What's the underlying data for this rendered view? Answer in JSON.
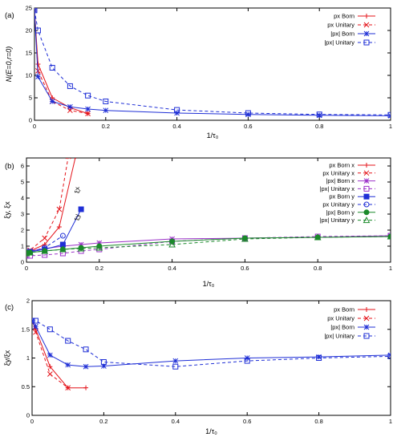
{
  "chart_data": [
    {
      "type": "line",
      "panel_label": "(a)",
      "xlabel": "1/τ₀",
      "ylabel": "N(E=0,r=0)",
      "xlim": [
        0,
        1
      ],
      "ylim": [
        0,
        25
      ],
      "xticks": [
        "0",
        "0.2",
        "0.4",
        "0.6",
        "0.8",
        "1"
      ],
      "xtick_values": [
        0,
        0.2,
        0.4,
        0.6,
        0.8,
        1
      ],
      "yticks": [
        "0",
        "5",
        "10",
        "15",
        "20",
        "25"
      ],
      "ytick_values": [
        0,
        5,
        10,
        15,
        20,
        25
      ],
      "legend_position": "top-right",
      "grid": false,
      "series": [
        {
          "name": "px Born",
          "color": "#e4131a",
          "dash": "solid",
          "marker": "plus",
          "x": [
            0,
            0.01,
            0.05,
            0.1,
            0.15
          ],
          "y": [
            24.5,
            12.5,
            5.0,
            2.8,
            1.5
          ]
        },
        {
          "name": "px Unitary",
          "color": "#e4131a",
          "dash": "dashed",
          "marker": "cross",
          "x": [
            0,
            0.01,
            0.05,
            0.1,
            0.15
          ],
          "y": [
            24.5,
            11.0,
            4.2,
            2.2,
            1.5
          ]
        },
        {
          "name": "|px| Born",
          "color": "#1f2fd6",
          "dash": "solid",
          "marker": "star",
          "x": [
            0,
            0.01,
            0.05,
            0.1,
            0.15,
            0.2,
            0.4,
            0.6,
            0.8,
            1.0
          ],
          "y": [
            24.5,
            9.7,
            4.2,
            3.0,
            2.5,
            2.2,
            1.6,
            1.3,
            1.1,
            1.0
          ]
        },
        {
          "name": "|px| Unitary",
          "color": "#1f2fd6",
          "dash": "dashed",
          "marker": "square",
          "x": [
            0,
            0.01,
            0.05,
            0.1,
            0.15,
            0.2,
            0.4,
            0.6,
            0.8,
            1.0
          ],
          "y": [
            24.5,
            20.0,
            11.7,
            7.6,
            5.5,
            4.2,
            2.3,
            1.6,
            1.3,
            1.2
          ]
        }
      ]
    },
    {
      "type": "line",
      "panel_label": "(b)",
      "xlabel": "1/τ₀",
      "ylabel": "ξy, ξx",
      "xlim": [
        0,
        1
      ],
      "ylim": [
        0,
        6.5
      ],
      "xticks": [
        "0",
        "0.2",
        "0.4",
        "0.6",
        "0.8",
        "1"
      ],
      "xtick_values": [
        0,
        0.2,
        0.4,
        0.6,
        0.8,
        1
      ],
      "yticks": [
        "0",
        "1",
        "2",
        "3",
        "4",
        "5",
        "6"
      ],
      "ytick_values": [
        0,
        1,
        2,
        3,
        4,
        5,
        6
      ],
      "legend_position": "top-right",
      "grid": false,
      "annotations": [
        {
          "text": "ξx",
          "x": 0.145,
          "y": 4.3
        },
        {
          "text": "ξy",
          "x": 0.145,
          "y": 2.6
        }
      ],
      "series": [
        {
          "name": "px Born x",
          "color": "#e4131a",
          "dash": "solid",
          "marker": "plus",
          "x": [
            0,
            0.01,
            0.05,
            0.09,
            0.135
          ],
          "y": [
            0.6,
            0.7,
            1.1,
            2.2,
            6.6
          ]
        },
        {
          "name": "px Unitary x",
          "color": "#e4131a",
          "dash": "dashed",
          "marker": "cross",
          "x": [
            0,
            0.01,
            0.05,
            0.09,
            0.115
          ],
          "y": [
            0.6,
            0.75,
            1.5,
            3.3,
            6.6
          ]
        },
        {
          "name": "|px| Born x",
          "color": "#9b30c8",
          "dash": "solid",
          "marker": "star",
          "x": [
            0,
            0.01,
            0.05,
            0.1,
            0.15,
            0.2,
            0.4,
            0.6,
            0.8,
            1.0
          ],
          "y": [
            0.6,
            0.7,
            0.85,
            1.0,
            1.1,
            1.2,
            1.45,
            1.5,
            1.55,
            1.65
          ]
        },
        {
          "name": "|px| Unitary x",
          "color": "#9b30c8",
          "dash": "dashed",
          "marker": "square",
          "x": [
            0,
            0.01,
            0.05,
            0.1,
            0.15,
            0.2,
            0.4,
            0.6,
            0.8,
            1.0
          ],
          "y": [
            0.4,
            0.4,
            0.45,
            0.55,
            0.7,
            0.8,
            1.3,
            1.5,
            1.6,
            1.65
          ]
        },
        {
          "name": "px Born y",
          "color": "#1f2fd6",
          "dash": "solid",
          "marker": "filled-square",
          "x": [
            0,
            0.01,
            0.05,
            0.1,
            0.15
          ],
          "y": [
            0.6,
            0.65,
            0.8,
            1.1,
            3.3
          ]
        },
        {
          "name": "px Unitary y",
          "color": "#1f2fd6",
          "dash": "dashed",
          "marker": "circle",
          "x": [
            0,
            0.01,
            0.05,
            0.1
          ],
          "y": [
            0.6,
            0.65,
            0.9,
            1.65
          ]
        },
        {
          "name": "|px| Born y",
          "color": "#1a8a2a",
          "dash": "solid",
          "marker": "filled-circle",
          "x": [
            0,
            0.01,
            0.05,
            0.1,
            0.15,
            0.2,
            0.4,
            0.6,
            0.8,
            1.0
          ],
          "y": [
            0.6,
            0.6,
            0.7,
            0.8,
            0.9,
            1.0,
            1.3,
            1.5,
            1.55,
            1.6
          ]
        },
        {
          "name": "|px| Unitary y",
          "color": "#1a8a2a",
          "dash": "dashed",
          "marker": "triangle",
          "x": [
            0,
            0.01,
            0.05,
            0.1,
            0.15,
            0.2,
            0.4,
            0.6,
            0.8,
            1.0
          ],
          "y": [
            0.55,
            0.6,
            0.7,
            0.8,
            0.85,
            0.9,
            1.1,
            1.45,
            1.55,
            1.6
          ]
        }
      ]
    },
    {
      "type": "line",
      "panel_label": "(c)",
      "xlabel": "1/τ₀",
      "ylabel": "ξy/ξx",
      "xlim": [
        0,
        1
      ],
      "ylim": [
        0,
        2
      ],
      "xticks": [
        "0",
        "0.2",
        "0.4",
        "0.6",
        "0.8",
        "1"
      ],
      "xtick_values": [
        0,
        0.2,
        0.4,
        0.6,
        0.8,
        1
      ],
      "yticks": [
        "0",
        "0.5",
        "1",
        "1.5",
        "2"
      ],
      "ytick_values": [
        0,
        0.5,
        1,
        1.5,
        2
      ],
      "legend_position": "top-right",
      "grid": false,
      "series": [
        {
          "name": "px Born",
          "color": "#e4131a",
          "dash": "solid",
          "marker": "plus",
          "x": [
            0,
            0.01,
            0.05,
            0.1,
            0.15
          ],
          "y": [
            1.65,
            1.5,
            0.85,
            0.48,
            0.48
          ]
        },
        {
          "name": "px Unitary",
          "color": "#e4131a",
          "dash": "dashed",
          "marker": "cross",
          "x": [
            0,
            0.01,
            0.05,
            0.1
          ],
          "y": [
            1.65,
            1.45,
            0.72,
            0.48
          ]
        },
        {
          "name": "|px| Born",
          "color": "#1f2fd6",
          "dash": "solid",
          "marker": "star",
          "x": [
            0,
            0.01,
            0.05,
            0.1,
            0.15,
            0.2,
            0.4,
            0.6,
            0.8,
            1.0
          ],
          "y": [
            1.65,
            1.55,
            1.05,
            0.88,
            0.85,
            0.86,
            0.95,
            1.0,
            1.02,
            1.05
          ]
        },
        {
          "name": "|px| Unitary",
          "color": "#1f2fd6",
          "dash": "dashed",
          "marker": "square",
          "x": [
            0,
            0.01,
            0.05,
            0.1,
            0.15,
            0.2,
            0.4,
            0.6,
            0.8,
            1.0
          ],
          "y": [
            1.65,
            1.65,
            1.5,
            1.3,
            1.15,
            0.93,
            0.85,
            0.95,
            1.0,
            1.03
          ]
        }
      ]
    }
  ]
}
